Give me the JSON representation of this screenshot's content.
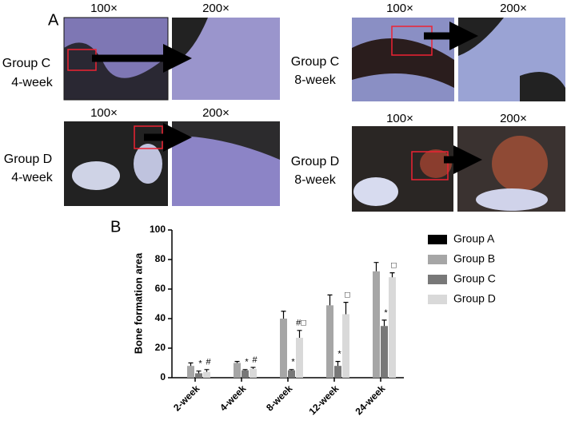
{
  "panel_a": {
    "label": "A",
    "panels": [
      {
        "group": "Group C",
        "time": "4-week",
        "mag_low": "100×",
        "mag_high": "200×"
      },
      {
        "group": "Group C",
        "time": "8-week",
        "mag_low": "100×",
        "mag_high": "200×"
      },
      {
        "group": "Group D",
        "time": "4-week",
        "mag_low": "100×",
        "mag_high": "200×"
      },
      {
        "group": "Group D",
        "time": "8-week",
        "mag_low": "100×",
        "mag_high": "200×"
      }
    ]
  },
  "chart_data": {
    "type": "bar",
    "label": "B",
    "y_label": "Bone formation area",
    "categories": [
      "2-week",
      "4-week",
      "8-week",
      "12-week",
      "24-week"
    ],
    "series": [
      {
        "name": "Group A",
        "color": "#000000",
        "values": [
          null,
          null,
          null,
          null,
          null
        ],
        "errors": [
          null,
          null,
          null,
          null,
          null
        ],
        "markers": [
          null,
          null,
          null,
          null,
          null
        ]
      },
      {
        "name": "Group B",
        "color": "#a6a6a6",
        "values": [
          8,
          10,
          40,
          49,
          72
        ],
        "errors": [
          2,
          1,
          5,
          7,
          6
        ],
        "markers": [
          null,
          null,
          null,
          null,
          null
        ]
      },
      {
        "name": "Group C",
        "color": "#787878",
        "values": [
          3,
          5,
          5,
          8,
          35
        ],
        "errors": [
          1.5,
          0.5,
          0.5,
          3,
          4
        ],
        "markers": [
          "*",
          "*",
          "*",
          "*",
          "*"
        ]
      },
      {
        "name": "Group D",
        "color": "#d9d9d9",
        "values": [
          4,
          6,
          27,
          43,
          68
        ],
        "errors": [
          1.5,
          1,
          5,
          8,
          3
        ],
        "markers": [
          "#",
          "#",
          "#□",
          "□",
          "□"
        ]
      }
    ],
    "ylim": [
      0,
      100
    ],
    "yticks": [
      0,
      20,
      40,
      60,
      80,
      100
    ],
    "grid": false
  }
}
